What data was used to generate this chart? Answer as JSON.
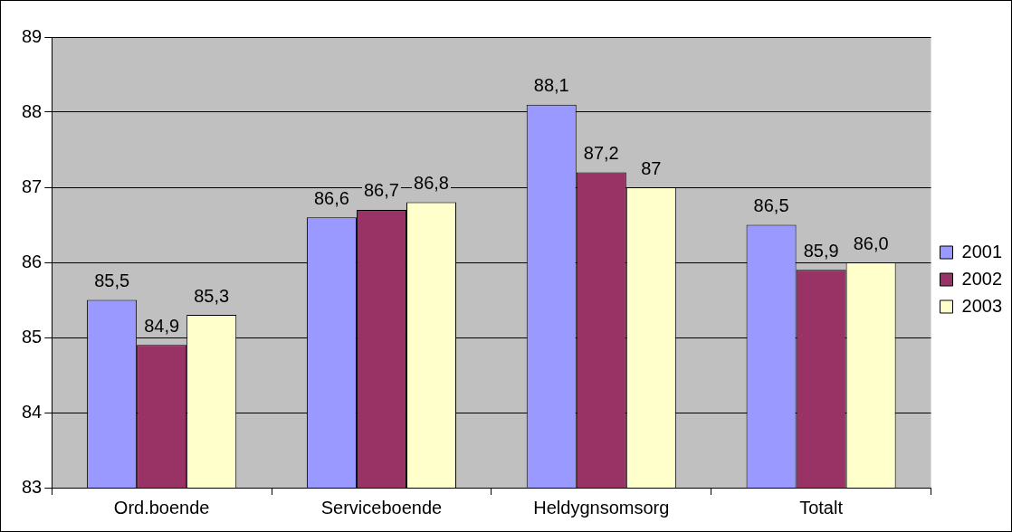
{
  "chart_data": {
    "type": "bar",
    "categories": [
      "Ord.boende",
      "Serviceboende",
      "Heldygnsomsorg",
      "Totalt"
    ],
    "series": [
      {
        "name": "2001",
        "color": "#9999ff",
        "values": [
          85.5,
          86.6,
          88.1,
          86.5
        ],
        "value_labels": [
          "85,5",
          "86,6",
          "88,1",
          "86,5"
        ]
      },
      {
        "name": "2002",
        "color": "#993366",
        "values": [
          84.9,
          86.7,
          87.2,
          85.9
        ],
        "value_labels": [
          "84,9",
          "86,7",
          "87,2",
          "85,9"
        ]
      },
      {
        "name": "2003",
        "color": "#ffffcc",
        "values": [
          85.3,
          86.8,
          87.0,
          86.0
        ],
        "value_labels": [
          "85,3",
          "86,8",
          "87",
          "86,0"
        ]
      }
    ],
    "ylim": [
      83,
      89
    ],
    "yticks": [
      83,
      84,
      85,
      86,
      87,
      88,
      89
    ],
    "grid": "y",
    "legend": "right"
  }
}
